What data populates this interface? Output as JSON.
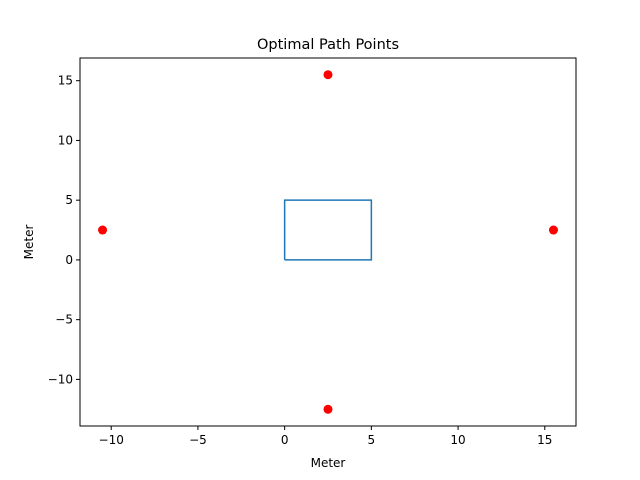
{
  "chart_data": {
    "type": "scatter",
    "title": "Optimal Path Points",
    "xlabel": "Meter",
    "ylabel": "Meter",
    "xlim": [
      -11.8,
      16.8
    ],
    "ylim": [
      -13.9,
      16.9
    ],
    "xticks": [
      -10,
      -5,
      0,
      5,
      10,
      15
    ],
    "yticks": [
      -10,
      -5,
      0,
      5,
      10,
      15
    ],
    "grid": false,
    "series": [
      {
        "kind": "line",
        "color": "#1f77b4",
        "x": [
          0,
          5,
          5,
          0,
          0
        ],
        "y": [
          0,
          0,
          5,
          5,
          0
        ]
      },
      {
        "kind": "points",
        "color": "#ff0000",
        "x": [
          2.5,
          15.5,
          2.5,
          -10.5
        ],
        "y": [
          15.5,
          2.5,
          -12.5,
          2.5
        ]
      }
    ]
  }
}
